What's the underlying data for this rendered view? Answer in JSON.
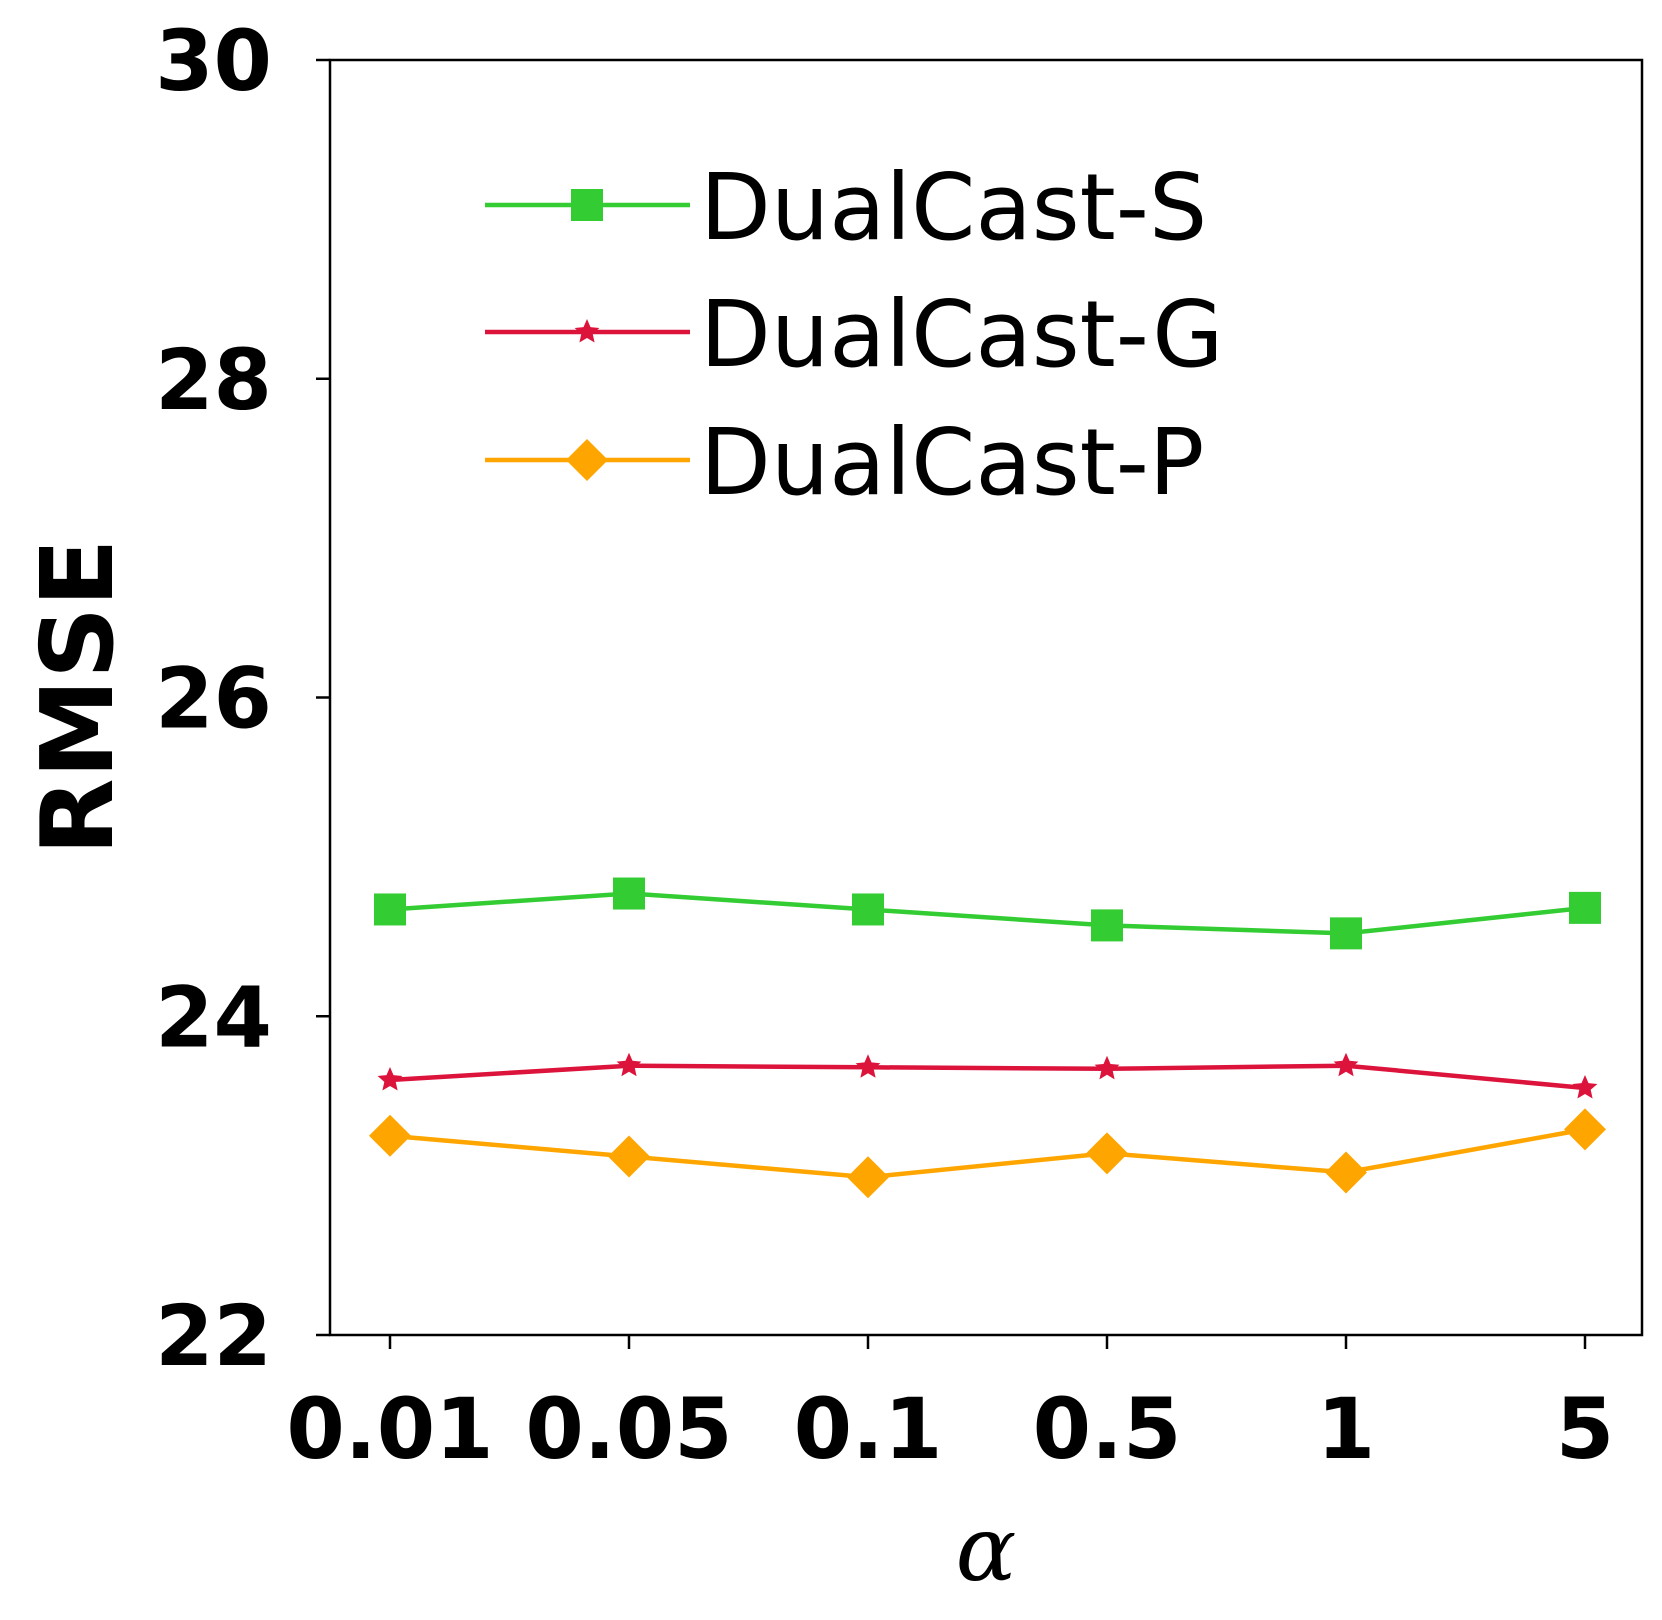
{
  "chart_data": {
    "type": "line",
    "title": "",
    "xlabel": "α",
    "ylabel": "RMSE",
    "categories": [
      "0.01",
      "0.05",
      "0.1",
      "0.5",
      "1",
      "5"
    ],
    "ylim": [
      22,
      30
    ],
    "yticks": [
      22,
      24,
      26,
      28,
      30
    ],
    "ytick_labels": [
      "22",
      "24",
      "26",
      "28",
      "30"
    ],
    "grid": false,
    "legend_position": "top-center",
    "series": [
      {
        "name": "DualCast-S",
        "color": "#33cc33",
        "marker": "square",
        "values": [
          24.67,
          24.77,
          24.67,
          24.57,
          24.52,
          24.68
        ]
      },
      {
        "name": "DualCast-G",
        "color": "#dc143c",
        "marker": "star",
        "values": [
          23.6,
          23.69,
          23.68,
          23.67,
          23.69,
          23.55
        ]
      },
      {
        "name": "DualCast-P",
        "color": "#ffa500",
        "marker": "diamond",
        "values": [
          23.25,
          23.12,
          22.99,
          23.14,
          23.02,
          23.29
        ]
      }
    ]
  }
}
